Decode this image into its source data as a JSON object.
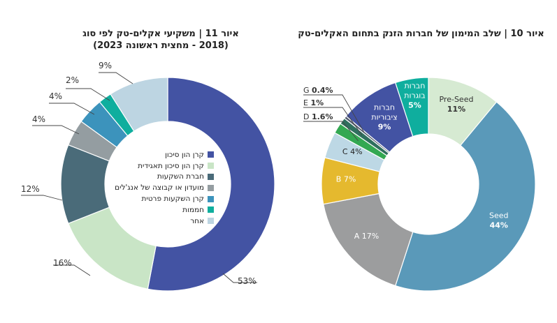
{
  "chart_data": [
    {
      "type": "pie",
      "title": "איור 11 | משקיעי אקלים-טק לפי סוג",
      "subtitle": "(2018 - מחצית ראשונה 2023)",
      "slices": [
        {
          "label": "קרן הון סיכון",
          "value": 53,
          "display": "53%",
          "color": "#4353a3"
        },
        {
          "label": "קרן הון סיכון תאגידית",
          "value": 16,
          "display": "16%",
          "color": "#c9e5c6"
        },
        {
          "label": "חברת השקעות",
          "value": 12,
          "display": "12%",
          "color": "#4a6b79"
        },
        {
          "label": "מועדון או קבוצה של אנג'לים",
          "value": 4,
          "display": "4%",
          "color": "#949da1"
        },
        {
          "label": "קרן השקעות פרטית",
          "value": 4,
          "display": "4%",
          "color": "#3c93bc"
        },
        {
          "label": "חממות",
          "value": 2,
          "display": "2%",
          "color": "#0fae9e"
        },
        {
          "label": "אחר",
          "value": 9,
          "display": "9%",
          "color": "#bdd5e2"
        }
      ]
    },
    {
      "type": "pie",
      "title": "איור 10 | שלב המימון של חברות הזנק בתחום האקלים-טק",
      "slices": [
        {
          "label": "Pre-Seed",
          "value": 11,
          "display": "11%",
          "color": "#d6ead2"
        },
        {
          "label": "Seed",
          "value": 44,
          "display": "44%",
          "color": "#5a99b9"
        },
        {
          "label": "A",
          "value": 17,
          "display": "17%",
          "color": "#9c9d9e"
        },
        {
          "label": "B",
          "value": 7,
          "display": "7%",
          "color": "#e5b92e"
        },
        {
          "label": "C",
          "value": 4,
          "display": "4%",
          "color": "#bdd8e5"
        },
        {
          "label": "D",
          "value": 1.6,
          "display": "1.6%",
          "color": "#33a852"
        },
        {
          "label": "E",
          "value": 1,
          "display": "1%",
          "color": "#2f6f5e"
        },
        {
          "label": "G",
          "value": 0.4,
          "display": "0.4%",
          "color": "#555e70"
        },
        {
          "label": "חברות ציבוריות",
          "value": 9,
          "display": "9%",
          "color": "#4353a3"
        },
        {
          "label": "חברות בוגרות",
          "value": 5,
          "display": "5%",
          "color": "#0fae9e"
        }
      ]
    }
  ]
}
